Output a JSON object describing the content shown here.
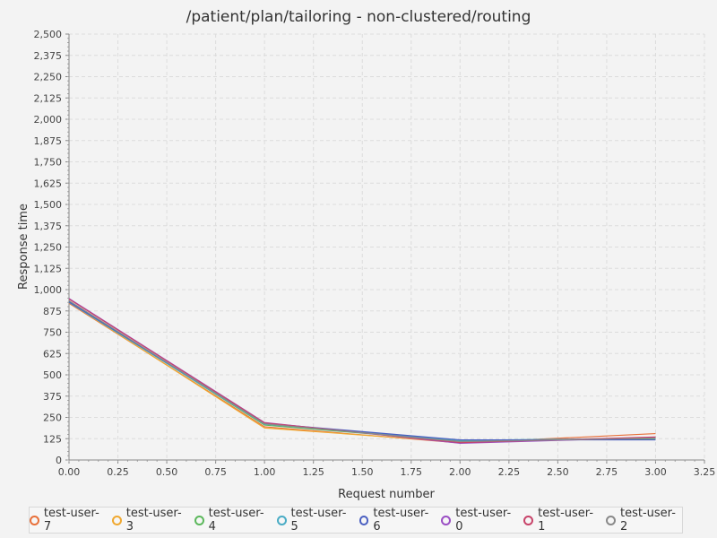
{
  "chart_data": {
    "type": "line",
    "title": "/patient/plan/tailoring - non-clustered/routing",
    "xlabel": "Request number",
    "ylabel": "Response time",
    "xlim": [
      0,
      3.25
    ],
    "ylim": [
      0,
      2500
    ],
    "x_ticks": [
      "0.00",
      "0.25",
      "0.50",
      "0.75",
      "1.00",
      "1.25",
      "1.50",
      "1.75",
      "2.00",
      "2.25",
      "2.50",
      "2.75",
      "3.00",
      "3.25"
    ],
    "y_ticks": [
      "0",
      "125",
      "250",
      "375",
      "500",
      "625",
      "750",
      "875",
      "1,000",
      "1,125",
      "1,250",
      "1,375",
      "1,500",
      "1,625",
      "1,750",
      "1,875",
      "2,000",
      "2,125",
      "2,250",
      "2,375",
      "2,500"
    ],
    "grid": true,
    "legend_position": "bottom",
    "x": [
      0,
      1,
      2,
      3
    ],
    "series": [
      {
        "name": "test-user-7",
        "color": "#e8703a",
        "values": [
          920,
          195,
          100,
          155
        ]
      },
      {
        "name": "test-user-3",
        "color": "#f0a830",
        "values": [
          925,
          188,
          105,
          130
        ]
      },
      {
        "name": "test-user-4",
        "color": "#5cb85c",
        "values": [
          930,
          205,
          110,
          125
        ]
      },
      {
        "name": "test-user-5",
        "color": "#4aacc5",
        "values": [
          925,
          210,
          115,
          128
        ]
      },
      {
        "name": "test-user-6",
        "color": "#4a5fc1",
        "values": [
          928,
          215,
          118,
          118
        ]
      },
      {
        "name": "test-user-0",
        "color": "#9b4fc4",
        "values": [
          948,
          220,
          98,
          132
        ]
      },
      {
        "name": "test-user-1",
        "color": "#c8446a",
        "values": [
          945,
          218,
          102,
          135
        ]
      },
      {
        "name": "test-user-2",
        "color": "#8a8a8a",
        "values": [
          935,
          212,
          108,
          128
        ]
      }
    ]
  }
}
